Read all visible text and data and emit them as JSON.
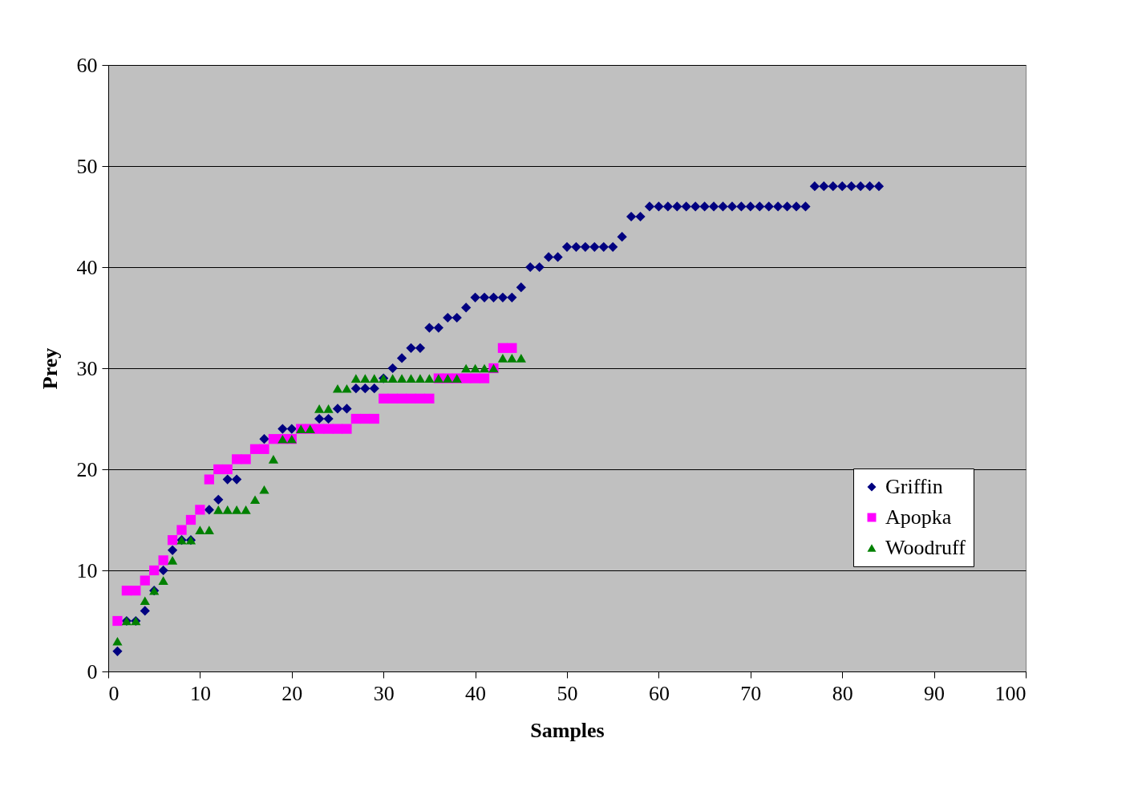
{
  "chart_data": {
    "type": "scatter",
    "xlabel": "Samples",
    "ylabel": "Prey",
    "xlim": [
      0,
      100
    ],
    "xticks": [
      0,
      10,
      20,
      30,
      40,
      50,
      60,
      70,
      80,
      90,
      100
    ],
    "ylim": [
      0,
      60
    ],
    "yticks": [
      0,
      10,
      20,
      30,
      40,
      50,
      60
    ],
    "grid": "y",
    "legend": "bottom right",
    "series": [
      {
        "name": "Griffin",
        "color": "#000080",
        "marker": "diamond",
        "x": [
          1,
          2,
          3,
          4,
          5,
          6,
          7,
          8,
          9,
          11,
          12,
          13,
          14,
          17,
          19,
          20,
          23,
          24,
          25,
          26,
          27,
          28,
          29,
          30,
          31,
          32,
          33,
          34,
          35,
          36,
          37,
          38,
          39,
          40,
          41,
          42,
          43,
          44,
          45,
          46,
          47,
          48,
          49,
          50,
          51,
          52,
          53,
          54,
          55,
          56,
          57,
          58,
          59,
          60,
          61,
          62,
          63,
          64,
          65,
          66,
          67,
          68,
          69,
          70,
          71,
          72,
          73,
          74,
          75,
          76,
          77,
          78,
          79,
          80,
          81,
          82,
          83,
          84
        ],
        "values": [
          2,
          5,
          5,
          6,
          8,
          10,
          12,
          13,
          13,
          16,
          17,
          19,
          19,
          23,
          24,
          24,
          25,
          25,
          26,
          26,
          28,
          28,
          28,
          29,
          30,
          31,
          32,
          32,
          34,
          34,
          35,
          35,
          36,
          37,
          37,
          37,
          37,
          37,
          38,
          40,
          40,
          41,
          41,
          42,
          42,
          42,
          42,
          42,
          42,
          43,
          45,
          45,
          46,
          46,
          46,
          46,
          46,
          46,
          46,
          46,
          46,
          46,
          46,
          46,
          46,
          46,
          46,
          46,
          46,
          46,
          48,
          48,
          48,
          48,
          48,
          48,
          48,
          48
        ]
      },
      {
        "name": "Apopka",
        "color": "#ff00ff",
        "marker": "square",
        "x": [
          1,
          2,
          3,
          4,
          5,
          6,
          7,
          8,
          9,
          10,
          11,
          12,
          13,
          14,
          15,
          16,
          17,
          18,
          19,
          20,
          21,
          22,
          23,
          24,
          25,
          26,
          27,
          28,
          29,
          30,
          31,
          32,
          33,
          34,
          35,
          36,
          37,
          38,
          39,
          40,
          41,
          42,
          43,
          44
        ],
        "values": [
          5,
          8,
          8,
          9,
          10,
          11,
          13,
          14,
          15,
          16,
          19,
          20,
          20,
          21,
          21,
          22,
          22,
          23,
          23,
          23,
          24,
          24,
          24,
          24,
          24,
          24,
          25,
          25,
          25,
          27,
          27,
          27,
          27,
          27,
          27,
          29,
          29,
          29,
          29,
          29,
          29,
          30,
          32,
          32
        ]
      },
      {
        "name": "Woodruff",
        "color": "#008000",
        "marker": "triangle",
        "x": [
          1,
          2,
          3,
          4,
          5,
          6,
          7,
          8,
          9,
          10,
          11,
          12,
          13,
          14,
          15,
          16,
          17,
          18,
          19,
          20,
          21,
          22,
          23,
          24,
          25,
          26,
          27,
          28,
          29,
          30,
          31,
          32,
          33,
          34,
          35,
          36,
          37,
          38,
          39,
          40,
          41,
          42,
          43,
          44,
          45
        ],
        "values": [
          3,
          5,
          5,
          7,
          8,
          9,
          11,
          13,
          13,
          14,
          14,
          16,
          16,
          16,
          16,
          17,
          18,
          21,
          23,
          23,
          24,
          24,
          26,
          26,
          28,
          28,
          29,
          29,
          29,
          29,
          29,
          29,
          29,
          29,
          29,
          29,
          29,
          29,
          30,
          30,
          30,
          30,
          31,
          31,
          31
        ]
      }
    ]
  }
}
